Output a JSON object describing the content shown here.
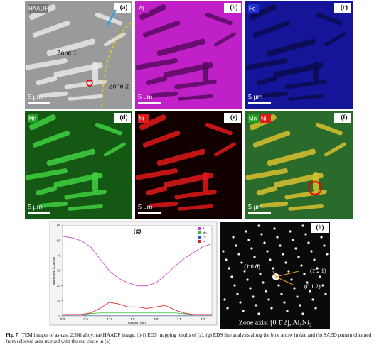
{
  "panels": [
    {
      "label": "(a)",
      "tags": [
        "HAADF"
      ],
      "scale": "5 µm"
    },
    {
      "label": "(b)",
      "tags": [
        "Al"
      ],
      "scale": "5 µm"
    },
    {
      "label": "(c)",
      "tags": [
        "Fe"
      ],
      "scale": "5 µm"
    },
    {
      "label": "(d)",
      "tags": [
        "Mn"
      ],
      "scale": "5 µm"
    },
    {
      "label": "(e)",
      "tags": [
        "Ni"
      ],
      "scale": "5 µm"
    },
    {
      "label": "(f)",
      "tags": [
        "Mn",
        "Ni"
      ],
      "scale": "5 µm"
    }
  ],
  "annotations": {
    "zone1": "Zone 1",
    "zone2": "Zone 2"
  },
  "chart_data": {
    "type": "line",
    "label": "(g)",
    "xlabel": "Position (µm)",
    "ylabel": "Integrated (Counts)",
    "x": [
      0,
      0.2,
      0.4,
      0.6,
      0.8,
      1.0,
      1.2,
      1.4,
      1.6,
      1.8,
      2.0,
      2.2,
      2.4,
      2.6,
      2.8,
      3.0,
      3.2
    ],
    "series": [
      {
        "name": "Al",
        "color": "#c040c8",
        "values": [
          53,
          52,
          50,
          46,
          38,
          30,
          25,
          22,
          20,
          20,
          22,
          27,
          33,
          38,
          42,
          46,
          48
        ]
      },
      {
        "name": "Mn",
        "color": "#30c030",
        "values": [
          1,
          1,
          1,
          1.5,
          2,
          2,
          2,
          2,
          2,
          2,
          2,
          2,
          2,
          1.5,
          1,
          1,
          1
        ]
      },
      {
        "name": "Fe",
        "color": "#3050d0",
        "values": [
          0.5,
          0.5,
          0.5,
          0.5,
          0.5,
          0.5,
          0.5,
          0.5,
          0.5,
          0.5,
          0.5,
          0.5,
          0.5,
          0.5,
          0.5,
          0.5,
          0.5
        ]
      },
      {
        "name": "Ni",
        "color": "#e02020",
        "values": [
          1,
          1,
          1,
          2,
          5,
          9,
          8,
          6,
          6,
          5,
          6,
          7,
          4,
          2,
          1,
          1,
          1
        ]
      }
    ],
    "xlim": [
      0,
      3.2
    ],
    "xticks": [
      {
        "value": 0,
        "label": "0.0"
      },
      0.5,
      {
        "value": 1,
        "label": "1.0"
      },
      1.5,
      {
        "value": 2,
        "label": "2.0"
      },
      2.5,
      {
        "value": 3,
        "label": "3.0"
      }
    ],
    "ylim": [
      0,
      60
    ],
    "yticks": [
      0,
      10,
      20,
      30,
      40,
      50,
      60
    ],
    "legend": "upper-right"
  },
  "diffraction": {
    "label": "(h)",
    "spots": [
      "(1̄ 0 0)",
      "(1̄ 2 1)",
      "(0 1̄ 2)"
    ],
    "zone_axis": "Zone axis: [0 1̄ 2], Al₉Ni₂"
  },
  "caption": {
    "fig": "Fig. 7",
    "text": "TEM images of as-cast 2.5Ni alloy: (a) HAADF image, (b-f) EDS mapping results of (a), (g) EDS line analysis along the blue arrow in (a), and (h) SAED pattern obtained from selected area marked with the red circle in (a)"
  }
}
